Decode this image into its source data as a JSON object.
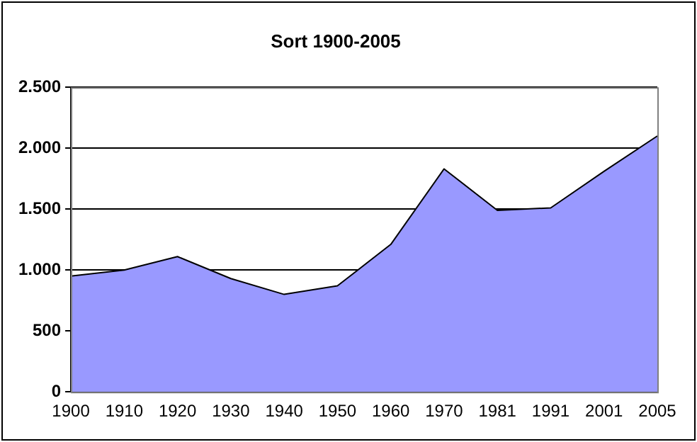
{
  "chart_data": {
    "type": "area",
    "title": "Sort 1900-2005",
    "categories": [
      "1900",
      "1910",
      "1920",
      "1930",
      "1940",
      "1950",
      "1960",
      "1970",
      "1981",
      "1991",
      "2001",
      "2005"
    ],
    "values": [
      950,
      1000,
      1110,
      930,
      800,
      870,
      1210,
      1830,
      1490,
      1510,
      1810,
      2100
    ],
    "color": "#9999ff",
    "ylim": [
      0,
      2500
    ],
    "yticks": [
      {
        "value": 0,
        "label": "0"
      },
      {
        "value": 500,
        "label": "500"
      },
      {
        "value": 1000,
        "label": "1.000"
      },
      {
        "value": 1500,
        "label": "1.500"
      },
      {
        "value": 2000,
        "label": "2.000"
      },
      {
        "value": 2500,
        "label": "2.500"
      }
    ],
    "grid": "y",
    "legend": false
  }
}
